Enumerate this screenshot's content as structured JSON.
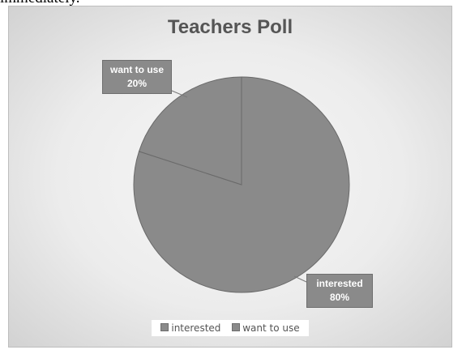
{
  "page": {
    "top_text": "immediately."
  },
  "chart_data": {
    "type": "pie",
    "title": "Teachers Poll",
    "categories": [
      "interested",
      "want to use"
    ],
    "values": [
      80,
      20
    ],
    "data_labels": [
      "80%",
      "20%"
    ],
    "colors": [
      "#8a8a8a",
      "#8a8a8a"
    ],
    "slice_stroke": "#6a6a6a",
    "start_angle_degrees": 0,
    "direction": "clockwise",
    "legend": {
      "position": "bottom",
      "entries": [
        "interested",
        "want to use"
      ]
    }
  }
}
